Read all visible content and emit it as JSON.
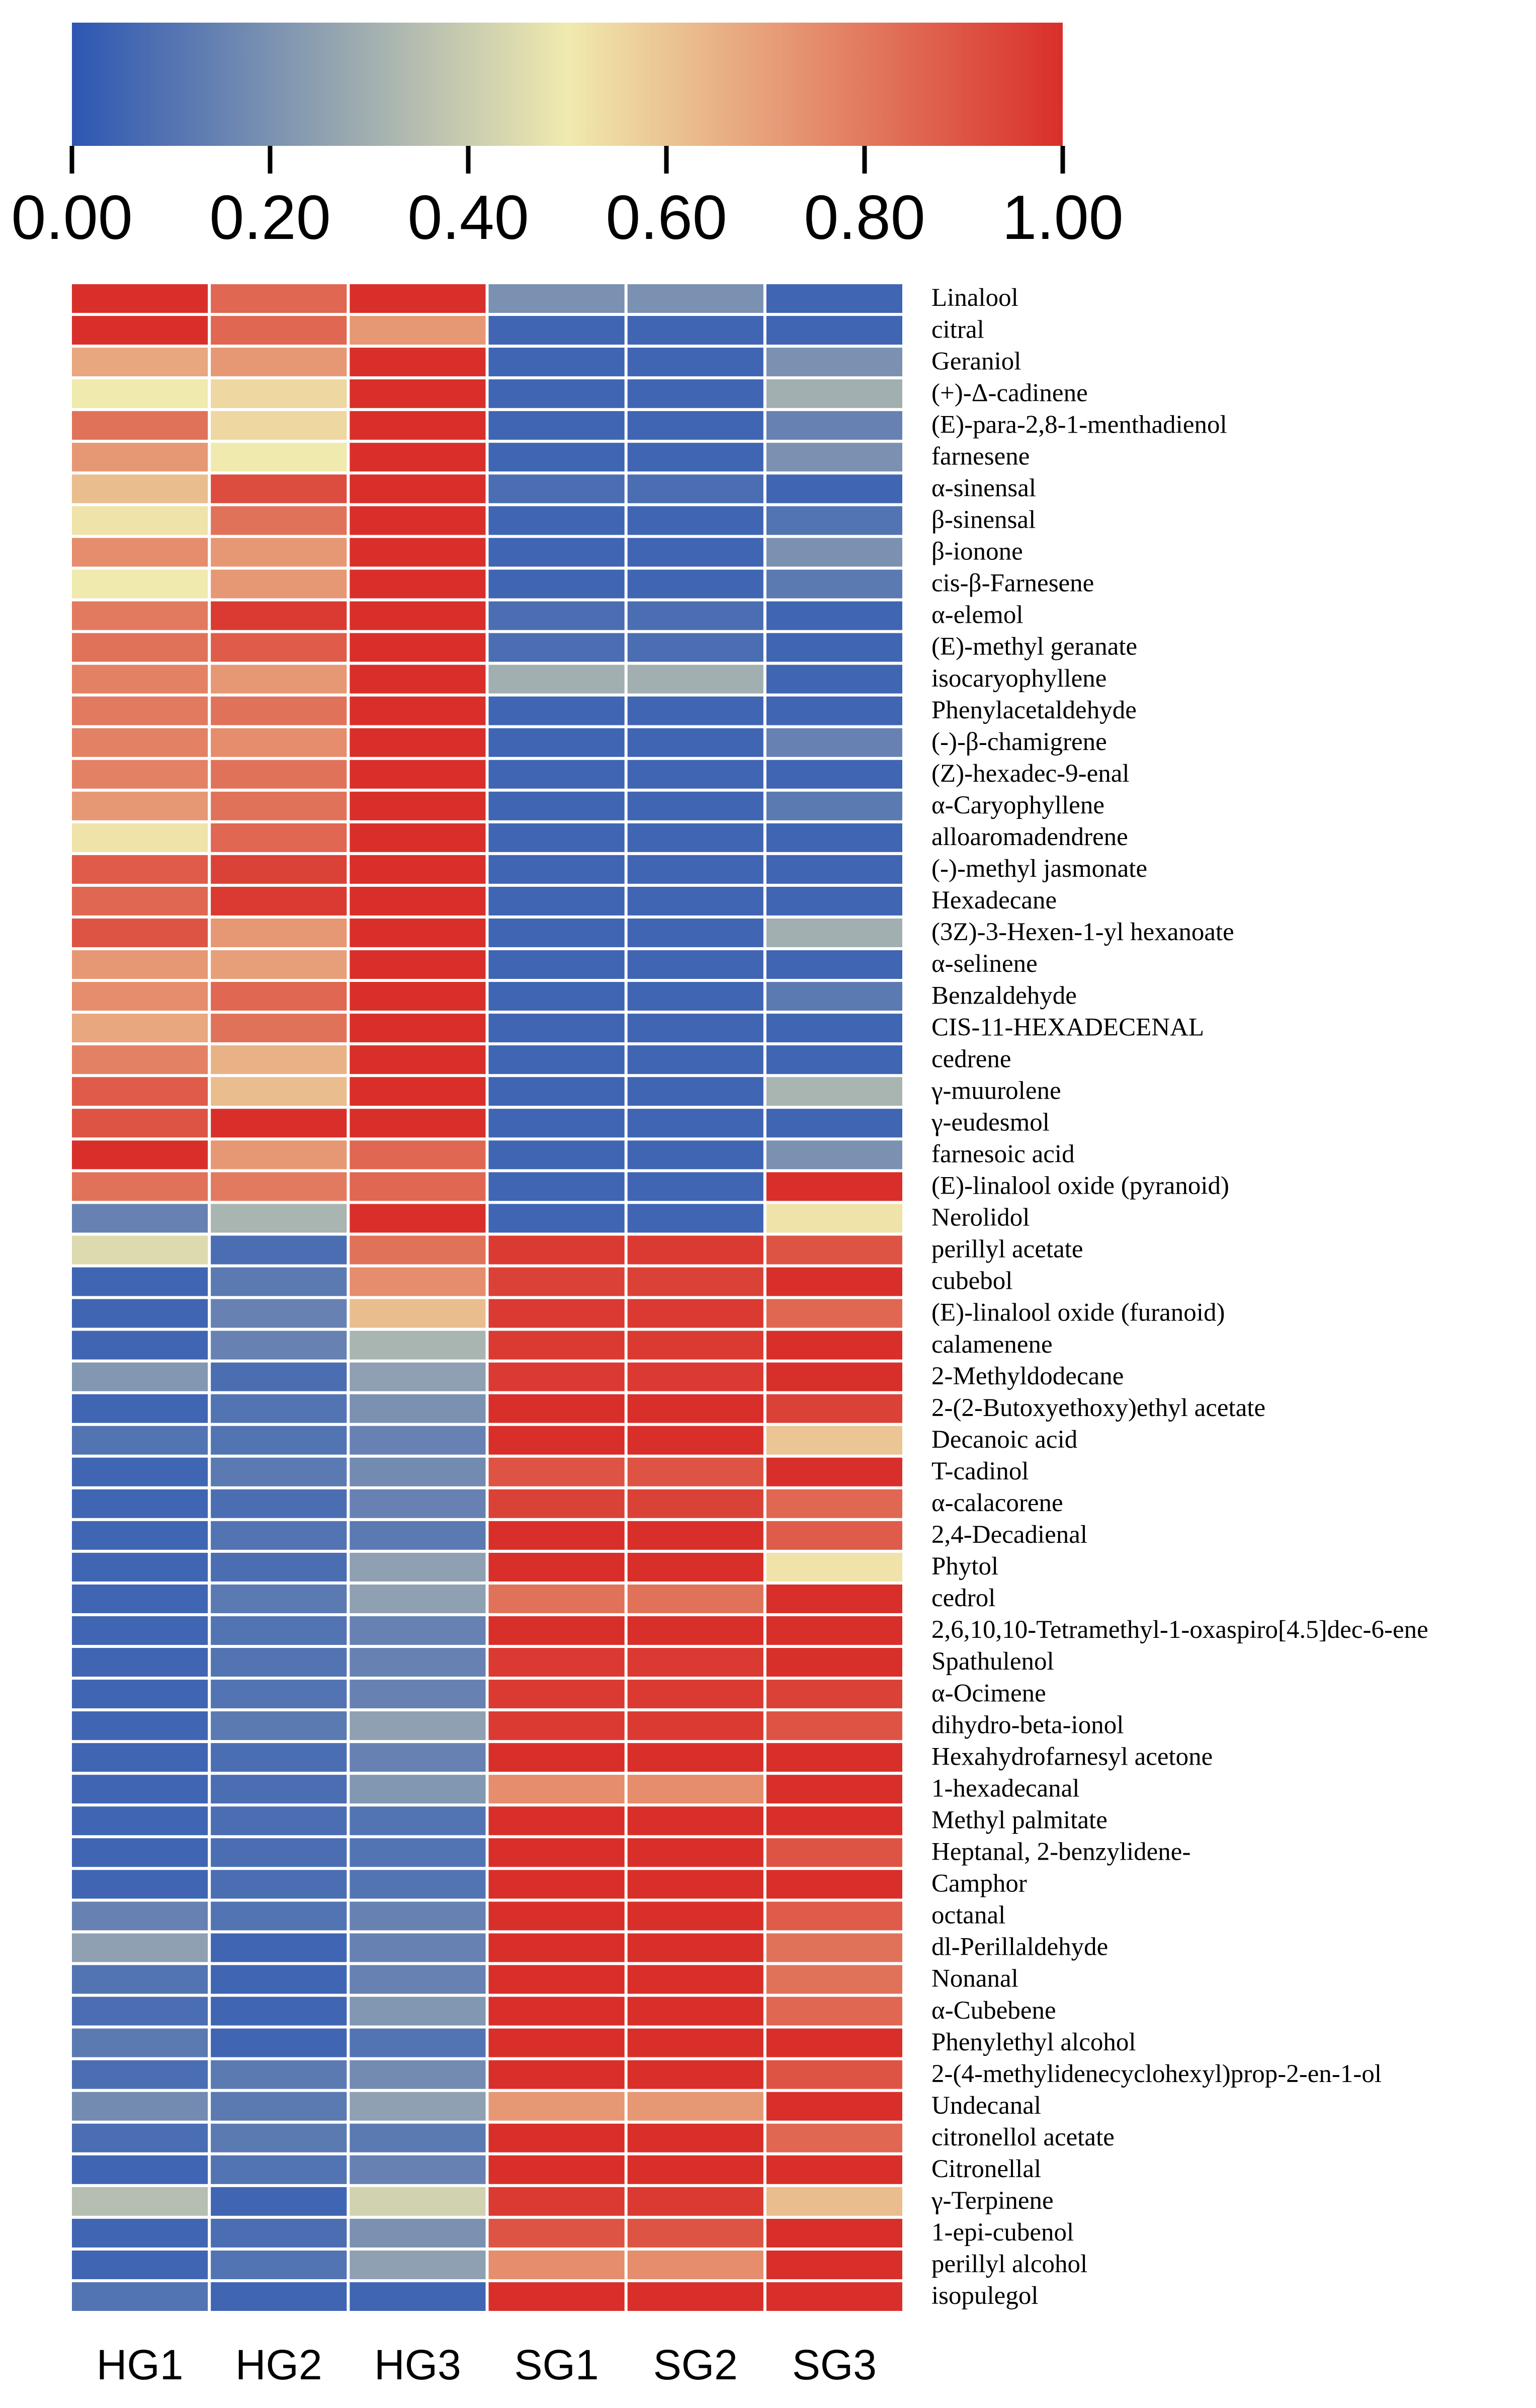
{
  "chart_data": {
    "type": "heatmap",
    "title": "",
    "columns": [
      "HG1",
      "HG2",
      "HG3",
      "SG1",
      "SG2",
      "SG3"
    ],
    "rows": [
      "Linalool",
      "citral",
      "Geraniol",
      "(+)-Δ-cadinene",
      "(E)-para-2,8-1-menthadienol",
      "farnesene",
      "α-sinensal",
      "β-sinensal",
      "β-ionone",
      "cis-β-Farnesene",
      "α-elemol",
      "(E)-methyl geranate",
      "isocaryophyllene",
      "Phenylacetaldehyde",
      "(-)-β-chamigrene",
      "(Z)-hexadec-9-enal",
      "α-Caryophyllene",
      "alloaromadendrene",
      "(-)-methyl jasmonate",
      "Hexadecane",
      "(3Z)-3-Hexen-1-yl hexanoate",
      "α-selinene",
      "Benzaldehyde",
      "CIS-11-HEXADECENAL",
      "cedrene",
      "γ-muurolene",
      "γ-eudesmol",
      "farnesoic acid",
      "(E)-linalool oxide (pyranoid)",
      "Nerolidol",
      "perillyl acetate",
      "cubebol",
      "(E)-linalool oxide (furanoid)",
      "calamenene",
      "2-Methyldodecane",
      "2-(2-Butoxyethoxy)ethyl acetate",
      "Decanoic acid",
      "T-cadinol",
      "α-calacorene",
      "2,4-Decadienal",
      "Phytol",
      "cedrol",
      "2,6,10,10-Tetramethyl-1-oxaspiro[4.5]dec-6-ene",
      "Spathulenol",
      "α-Ocimene",
      "dihydro-beta-ionol",
      "Hexahydrofarnesyl acetone",
      "1-hexadecanal",
      "Methyl palmitate",
      "Heptanal, 2-benzylidene-",
      "Camphor",
      "octanal",
      "dl-Perillaldehyde",
      "Nonanal",
      "α-Cubebene",
      "Phenylethyl alcohol",
      "2-(4-methylidenecyclohexyl)prop-2-en-1-ol",
      "Undecanal",
      "citronellol acetate",
      "Citronellal",
      "γ-Terpinene",
      "1-epi-cubenol",
      "perillyl alcohol",
      "isopulegol"
    ],
    "values": [
      [
        1.0,
        0.85,
        1.0,
        0.2,
        0.2,
        0.05
      ],
      [
        1.0,
        0.85,
        0.72,
        0.05,
        0.05,
        0.05
      ],
      [
        0.68,
        0.72,
        1.0,
        0.05,
        0.05,
        0.2
      ],
      [
        0.5,
        0.55,
        1.0,
        0.05,
        0.05,
        0.3
      ],
      [
        0.82,
        0.55,
        1.0,
        0.05,
        0.05,
        0.15
      ],
      [
        0.72,
        0.5,
        1.0,
        0.05,
        0.05,
        0.2
      ],
      [
        0.62,
        0.92,
        1.0,
        0.08,
        0.08,
        0.05
      ],
      [
        0.52,
        0.82,
        1.0,
        0.05,
        0.05,
        0.1
      ],
      [
        0.75,
        0.72,
        1.0,
        0.05,
        0.05,
        0.2
      ],
      [
        0.5,
        0.72,
        1.0,
        0.05,
        0.05,
        0.12
      ],
      [
        0.8,
        0.97,
        1.0,
        0.08,
        0.08,
        0.05
      ],
      [
        0.82,
        0.88,
        1.0,
        0.08,
        0.08,
        0.05
      ],
      [
        0.78,
        0.72,
        1.0,
        0.3,
        0.3,
        0.05
      ],
      [
        0.8,
        0.82,
        1.0,
        0.05,
        0.05,
        0.05
      ],
      [
        0.78,
        0.75,
        1.0,
        0.05,
        0.05,
        0.15
      ],
      [
        0.78,
        0.82,
        1.0,
        0.05,
        0.05,
        0.05
      ],
      [
        0.72,
        0.82,
        1.0,
        0.05,
        0.05,
        0.12
      ],
      [
        0.52,
        0.85,
        1.0,
        0.05,
        0.05,
        0.05
      ],
      [
        0.88,
        0.95,
        1.0,
        0.05,
        0.05,
        0.05
      ],
      [
        0.85,
        0.97,
        1.0,
        0.05,
        0.05,
        0.05
      ],
      [
        0.9,
        0.72,
        1.0,
        0.05,
        0.05,
        0.3
      ],
      [
        0.72,
        0.7,
        1.0,
        0.05,
        0.05,
        0.05
      ],
      [
        0.75,
        0.85,
        1.0,
        0.05,
        0.05,
        0.12
      ],
      [
        0.68,
        0.82,
        1.0,
        0.05,
        0.05,
        0.05
      ],
      [
        0.78,
        0.65,
        1.0,
        0.05,
        0.05,
        0.05
      ],
      [
        0.88,
        0.62,
        1.0,
        0.05,
        0.05,
        0.32
      ],
      [
        0.9,
        1.0,
        1.0,
        0.05,
        0.05,
        0.05
      ],
      [
        1.0,
        0.72,
        0.85,
        0.05,
        0.05,
        0.2
      ],
      [
        0.82,
        0.8,
        0.85,
        0.05,
        0.05,
        1.0
      ],
      [
        0.15,
        0.32,
        1.0,
        0.05,
        0.05,
        0.52
      ],
      [
        0.45,
        0.08,
        0.82,
        0.97,
        0.97,
        0.9
      ],
      [
        0.05,
        0.12,
        0.75,
        0.95,
        0.95,
        1.0
      ],
      [
        0.05,
        0.15,
        0.62,
        0.97,
        0.97,
        0.85
      ],
      [
        0.05,
        0.15,
        0.32,
        0.97,
        0.97,
        1.0
      ],
      [
        0.22,
        0.08,
        0.25,
        0.97,
        0.97,
        1.0
      ],
      [
        0.05,
        0.1,
        0.2,
        1.0,
        1.0,
        0.95
      ],
      [
        0.1,
        0.1,
        0.15,
        1.0,
        1.0,
        0.6
      ],
      [
        0.05,
        0.12,
        0.18,
        0.9,
        0.9,
        1.0
      ],
      [
        0.05,
        0.08,
        0.15,
        0.95,
        0.95,
        0.85
      ],
      [
        0.05,
        0.1,
        0.12,
        1.0,
        1.0,
        0.88
      ],
      [
        0.05,
        0.08,
        0.25,
        1.0,
        1.0,
        0.52
      ],
      [
        0.05,
        0.12,
        0.25,
        0.82,
        0.82,
        1.0
      ],
      [
        0.05,
        0.1,
        0.15,
        1.0,
        1.0,
        1.0
      ],
      [
        0.05,
        0.1,
        0.15,
        0.97,
        0.97,
        1.0
      ],
      [
        0.05,
        0.1,
        0.15,
        0.97,
        0.97,
        0.95
      ],
      [
        0.05,
        0.12,
        0.25,
        0.97,
        0.97,
        0.9
      ],
      [
        0.05,
        0.08,
        0.15,
        1.0,
        1.0,
        1.0
      ],
      [
        0.05,
        0.08,
        0.22,
        0.75,
        0.75,
        1.0
      ],
      [
        0.05,
        0.08,
        0.1,
        1.0,
        1.0,
        1.0
      ],
      [
        0.05,
        0.08,
        0.1,
        1.0,
        1.0,
        0.9
      ],
      [
        0.05,
        0.08,
        0.1,
        1.0,
        1.0,
        1.0
      ],
      [
        0.15,
        0.1,
        0.15,
        1.0,
        1.0,
        0.88
      ],
      [
        0.25,
        0.05,
        0.15,
        1.0,
        1.0,
        0.82
      ],
      [
        0.1,
        0.05,
        0.15,
        1.0,
        1.0,
        0.82
      ],
      [
        0.08,
        0.05,
        0.22,
        1.0,
        1.0,
        0.85
      ],
      [
        0.12,
        0.05,
        0.1,
        1.0,
        1.0,
        1.0
      ],
      [
        0.08,
        0.12,
        0.18,
        1.0,
        1.0,
        0.9
      ],
      [
        0.18,
        0.12,
        0.25,
        0.72,
        0.72,
        1.0
      ],
      [
        0.08,
        0.12,
        0.12,
        1.0,
        1.0,
        0.85
      ],
      [
        0.05,
        0.1,
        0.15,
        1.0,
        1.0,
        1.0
      ],
      [
        0.35,
        0.05,
        0.42,
        0.97,
        0.97,
        0.62
      ],
      [
        0.05,
        0.08,
        0.2,
        0.9,
        0.9,
        1.0
      ],
      [
        0.05,
        0.1,
        0.25,
        0.75,
        0.75,
        1.0
      ],
      [
        0.1,
        0.05,
        0.05,
        1.0,
        1.0,
        1.0
      ]
    ],
    "colorbar": {
      "ticks": [
        "0.00",
        "0.20",
        "0.40",
        "0.60",
        "0.80",
        "1.00"
      ],
      "range": [
        0,
        1
      ],
      "colors": [
        "#2c56b3",
        "#f0eaae",
        "#d92f2a"
      ]
    },
    "xlabel": "",
    "ylabel": ""
  }
}
